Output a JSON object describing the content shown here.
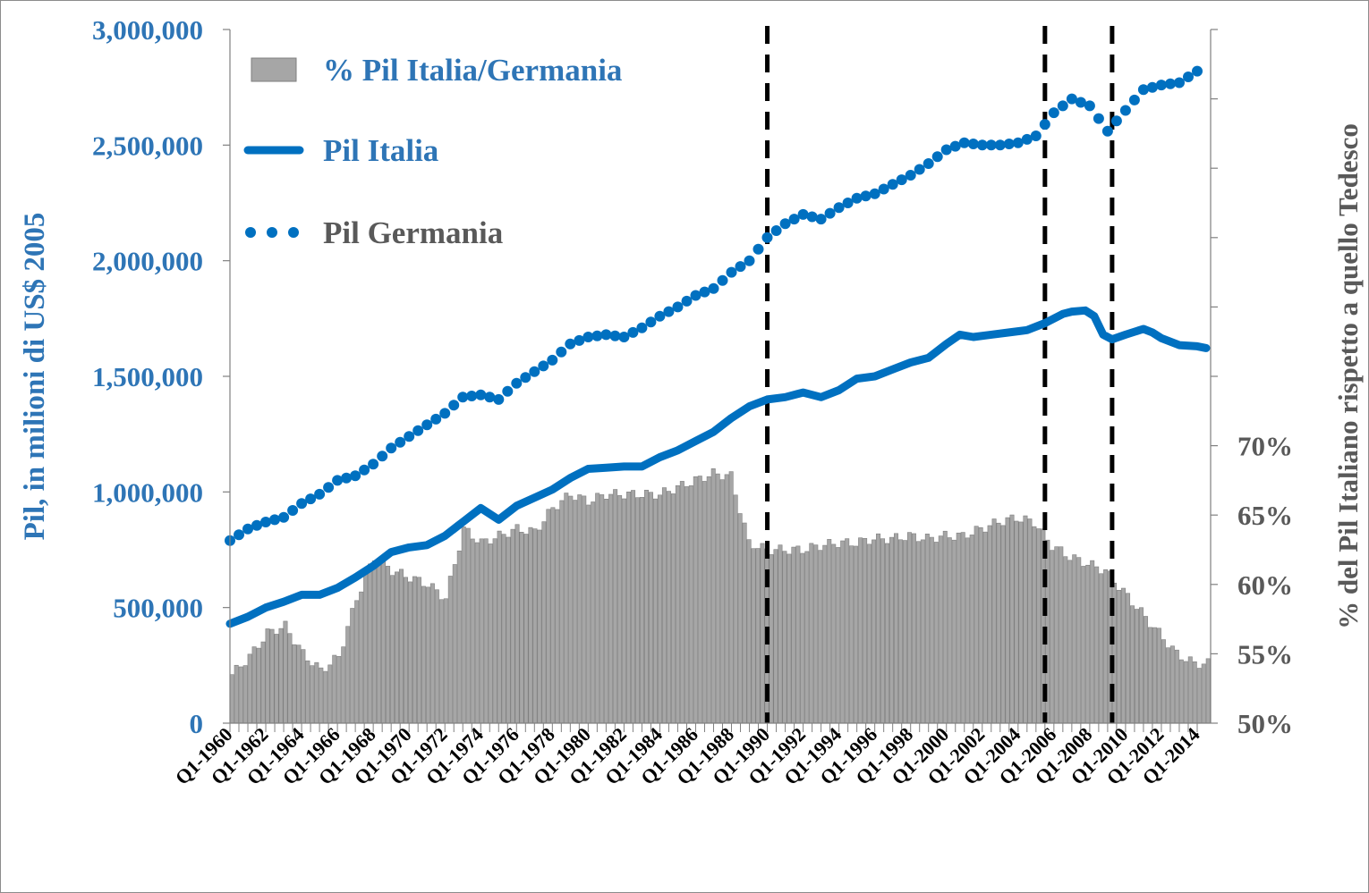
{
  "chart_data": {
    "type": "bar",
    "title": "",
    "ylabel_left": "Pil, in milioni di US$ 2005",
    "ylabel_right": "% del Pil Italiano rispetto a quello Tedesco",
    "ylim_left": [
      0,
      3000000
    ],
    "ylim_right": [
      50,
      100
    ],
    "yticks_left": [
      "0",
      "500,000",
      "1,000,000",
      "1,500,000",
      "2,000,000",
      "2,500,000",
      "3,000,000"
    ],
    "yticks_left_values": [
      0,
      500000,
      1000000,
      1500000,
      2000000,
      2500000,
      3000000
    ],
    "yticks_right": [
      "50%",
      "55%",
      "60%",
      "65%",
      "70%"
    ],
    "yticks_right_values": [
      50,
      55,
      60,
      65,
      70
    ],
    "x_start_year": 1960,
    "x_end_year": 2014,
    "xticks": [
      "Q1-1960",
      "Q1-1962",
      "Q1-1964",
      "Q1-1966",
      "Q1-1968",
      "Q1-1970",
      "Q1-1972",
      "Q1-1974",
      "Q1-1976",
      "Q1-1978",
      "Q1-1980",
      "Q1-1982",
      "Q1-1984",
      "Q1-1986",
      "Q1-1988",
      "Q1-1990",
      "Q1-1992",
      "Q1-1994",
      "Q1-1996",
      "Q1-1998",
      "Q1-2000",
      "Q1-2002",
      "Q1-2004",
      "Q1-2006",
      "Q1-2008",
      "Q1-2010",
      "Q1-2012",
      "Q1-2014"
    ],
    "vertical_markers": [
      "Q1-1990",
      "Q3-2005",
      "Q2-2009"
    ],
    "legend_position": "top-left",
    "legend": [
      {
        "label": "% Pil Italia/Germania",
        "style": "bar",
        "color": "#a6a6a6"
      },
      {
        "label": "Pil Italia",
        "style": "line",
        "color": "#0070c0"
      },
      {
        "label": "Pil Germania",
        "style": "dotted",
        "color": "#0070c0"
      }
    ],
    "series": [
      {
        "name": "% Pil Italia/Germania",
        "type": "bar",
        "axis": "right",
        "color": "#a6a6a6",
        "values_annual": [
          53.5,
          54.8,
          56.5,
          57.0,
          55.0,
          53.8,
          54.8,
          59.0,
          62.0,
          61.0,
          60.5,
          60.0,
          59.0,
          64.0,
          63.0,
          63.5,
          64.0,
          63.8,
          65.5,
          66.5,
          66.0,
          66.5,
          66.5,
          66.5,
          66.5,
          67.0,
          67.5,
          68.0,
          67.8,
          63.0,
          62.5,
          62.5,
          62.5,
          62.8,
          63.0,
          63.0,
          63.3,
          63.3,
          63.5,
          63.3,
          63.5,
          63.5,
          64.0,
          64.5,
          64.8,
          64.5,
          62.8,
          62.0,
          61.5,
          61.0,
          59.5,
          58.0,
          56.5,
          55.0,
          54.3
        ]
      },
      {
        "name": "Pil Italia",
        "type": "line",
        "axis": "left",
        "color": "#0070c0",
        "points": [
          [
            1960.0,
            430000
          ],
          [
            1961.0,
            460000
          ],
          [
            1962.0,
            500000
          ],
          [
            1963.0,
            525000
          ],
          [
            1964.0,
            555000
          ],
          [
            1965.0,
            555000
          ],
          [
            1966.0,
            585000
          ],
          [
            1967.0,
            630000
          ],
          [
            1968.0,
            680000
          ],
          [
            1969.0,
            740000
          ],
          [
            1970.0,
            760000
          ],
          [
            1971.0,
            770000
          ],
          [
            1972.0,
            810000
          ],
          [
            1973.0,
            870000
          ],
          [
            1974.0,
            930000
          ],
          [
            1975.0,
            880000
          ],
          [
            1976.0,
            940000
          ],
          [
            1977.0,
            975000
          ],
          [
            1978.0,
            1010000
          ],
          [
            1979.0,
            1060000
          ],
          [
            1980.0,
            1100000
          ],
          [
            1981.0,
            1105000
          ],
          [
            1982.0,
            1110000
          ],
          [
            1983.0,
            1110000
          ],
          [
            1984.0,
            1150000
          ],
          [
            1985.0,
            1180000
          ],
          [
            1986.0,
            1220000
          ],
          [
            1987.0,
            1260000
          ],
          [
            1988.0,
            1320000
          ],
          [
            1989.0,
            1370000
          ],
          [
            1990.0,
            1400000
          ],
          [
            1991.0,
            1410000
          ],
          [
            1992.0,
            1430000
          ],
          [
            1993.0,
            1410000
          ],
          [
            1994.0,
            1440000
          ],
          [
            1995.0,
            1490000
          ],
          [
            1996.0,
            1500000
          ],
          [
            1997.0,
            1530000
          ],
          [
            1998.0,
            1560000
          ],
          [
            1999.0,
            1580000
          ],
          [
            2000.0,
            1640000
          ],
          [
            2000.75,
            1680000
          ],
          [
            2001.5,
            1670000
          ],
          [
            2002.5,
            1680000
          ],
          [
            2003.5,
            1690000
          ],
          [
            2004.5,
            1700000
          ],
          [
            2005.5,
            1730000
          ],
          [
            2006.5,
            1770000
          ],
          [
            2007.0,
            1780000
          ],
          [
            2007.75,
            1785000
          ],
          [
            2008.25,
            1760000
          ],
          [
            2008.75,
            1680000
          ],
          [
            2009.25,
            1660000
          ],
          [
            2010.0,
            1680000
          ],
          [
            2011.0,
            1705000
          ],
          [
            2011.5,
            1690000
          ],
          [
            2012.0,
            1665000
          ],
          [
            2013.0,
            1635000
          ],
          [
            2014.0,
            1630000
          ],
          [
            2014.5,
            1622000
          ]
        ]
      },
      {
        "name": "Pil Germania",
        "type": "dotted",
        "axis": "left",
        "color": "#0070c0",
        "points": [
          [
            1960.0,
            790000
          ],
          [
            1961.0,
            840000
          ],
          [
            1962.0,
            870000
          ],
          [
            1963.0,
            890000
          ],
          [
            1964.0,
            950000
          ],
          [
            1965.0,
            990000
          ],
          [
            1966.0,
            1050000
          ],
          [
            1967.0,
            1070000
          ],
          [
            1968.0,
            1120000
          ],
          [
            1969.0,
            1190000
          ],
          [
            1970.0,
            1240000
          ],
          [
            1971.0,
            1290000
          ],
          [
            1972.0,
            1340000
          ],
          [
            1973.0,
            1410000
          ],
          [
            1974.0,
            1420000
          ],
          [
            1975.0,
            1400000
          ],
          [
            1976.0,
            1470000
          ],
          [
            1977.0,
            1520000
          ],
          [
            1978.0,
            1570000
          ],
          [
            1979.0,
            1640000
          ],
          [
            1980.0,
            1670000
          ],
          [
            1981.0,
            1680000
          ],
          [
            1982.0,
            1670000
          ],
          [
            1983.0,
            1710000
          ],
          [
            1984.0,
            1760000
          ],
          [
            1985.0,
            1800000
          ],
          [
            1986.0,
            1850000
          ],
          [
            1987.0,
            1880000
          ],
          [
            1988.0,
            1950000
          ],
          [
            1989.0,
            2000000
          ],
          [
            1990.0,
            2100000
          ],
          [
            1991.0,
            2160000
          ],
          [
            1992.0,
            2200000
          ],
          [
            1993.0,
            2180000
          ],
          [
            1994.0,
            2230000
          ],
          [
            1995.0,
            2270000
          ],
          [
            1996.0,
            2290000
          ],
          [
            1997.0,
            2330000
          ],
          [
            1998.0,
            2370000
          ],
          [
            1999.0,
            2420000
          ],
          [
            2000.0,
            2480000
          ],
          [
            2001.0,
            2510000
          ],
          [
            2002.0,
            2500000
          ],
          [
            2003.0,
            2500000
          ],
          [
            2004.0,
            2510000
          ],
          [
            2005.0,
            2540000
          ],
          [
            2006.0,
            2640000
          ],
          [
            2007.0,
            2700000
          ],
          [
            2008.0,
            2670000
          ],
          [
            2009.0,
            2560000
          ],
          [
            2010.0,
            2650000
          ],
          [
            2011.0,
            2740000
          ],
          [
            2012.0,
            2760000
          ],
          [
            2013.0,
            2770000
          ],
          [
            2014.0,
            2820000
          ]
        ]
      }
    ]
  }
}
